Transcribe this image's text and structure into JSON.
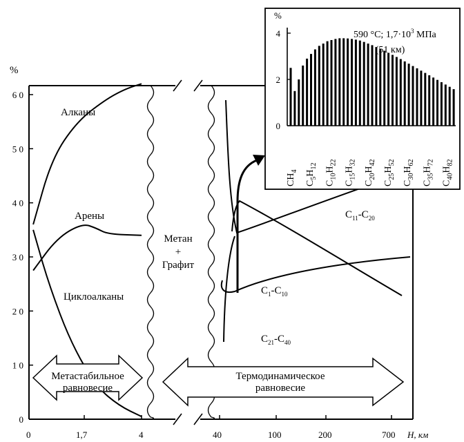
{
  "chart_data": [
    {
      "type": "line",
      "y_unit": "%",
      "x_unit": "H, км",
      "y_ticks": [
        "0",
        "1 0",
        "2 0",
        "3 0",
        "4 0",
        "5 0",
        "6 0"
      ],
      "x_ticks": [
        "0",
        "1,7",
        "4",
        "40",
        "100",
        "200",
        "700"
      ],
      "ylim": [
        0,
        60
      ],
      "series_labels": {
        "alkanes": "Алканы",
        "arenes": "Арены",
        "cycloalkanes": "Циклоалканы",
        "methane_graphite": [
          "Метан",
          "+",
          "Графит"
        ],
        "c11_c20": {
          "main": "C",
          "sub1": "11",
          "mid": "-C",
          "sub2": "20"
        },
        "c1_c10": {
          "main": "C",
          "sub1": "1",
          "mid": "-C",
          "sub2": "10"
        },
        "c21_c40": {
          "main": "C",
          "sub1": "21",
          "mid": "-C",
          "sub2": "40"
        }
      },
      "regions": {
        "metastable": [
          "Метастабильное",
          "равновесие"
        ],
        "thermodynamic": [
          "Термодинамическое",
          "равновесие"
        ]
      },
      "series": [
        {
          "key": "alkanes",
          "x": [
            0.15,
            0.8,
            1.7,
            2.7,
            3.4,
            4.0
          ],
          "y": [
            36,
            48,
            55,
            59,
            61,
            62
          ]
        },
        {
          "key": "arenes",
          "x": [
            0.15,
            1.0,
            1.9,
            2.4,
            2.8,
            4.0
          ],
          "y": [
            27.5,
            33.5,
            36.2,
            35.3,
            34.2,
            34.0
          ]
        },
        {
          "key": "cycloalkanes",
          "x": [
            0.15,
            0.7,
            1.5,
            2.4,
            3.2,
            4.0
          ],
          "y": [
            35,
            25,
            14,
            6,
            2.5,
            0.5
          ]
        }
      ]
    },
    {
      "type": "bar",
      "y_unit": "%",
      "y_ticks": [
        "4",
        "2",
        "0"
      ],
      "ylim": [
        0,
        4
      ],
      "annotation": {
        "line1_a": "590 °C; 1,7·10",
        "line1_sup": "3",
        "line1_b": " МПа",
        "line2": "(51 км)"
      },
      "category_labels": [
        {
          "c": "CH",
          "n": "4"
        },
        {
          "c": "C",
          "m": "5",
          "h": "H",
          "n": "12"
        },
        {
          "c": "C",
          "m": "10",
          "h": "H",
          "n": "22"
        },
        {
          "c": "C",
          "m": "15",
          "h": "H",
          "n": "32"
        },
        {
          "c": "C",
          "m": "20",
          "h": "H",
          "n": "42"
        },
        {
          "c": "C",
          "m": "25",
          "h": "H",
          "n": "52"
        },
        {
          "c": "C",
          "m": "30",
          "h": "H",
          "n": "62"
        },
        {
          "c": "C",
          "m": "35",
          "h": "H",
          "n": "72"
        },
        {
          "c": "C",
          "m": "40",
          "h": "H",
          "n": "82"
        }
      ],
      "values": [
        2.5,
        1.5,
        2.0,
        2.6,
        2.9,
        3.1,
        3.3,
        3.45,
        3.55,
        3.65,
        3.7,
        3.75,
        3.78,
        3.78,
        3.77,
        3.75,
        3.72,
        3.68,
        3.62,
        3.55,
        3.48,
        3.4,
        3.32,
        3.24,
        3.15,
        3.06,
        2.97,
        2.88,
        2.78,
        2.68,
        2.58,
        2.48,
        2.38,
        2.28,
        2.18,
        2.08,
        1.98,
        1.88,
        1.78,
        1.68,
        1.58
      ]
    }
  ]
}
